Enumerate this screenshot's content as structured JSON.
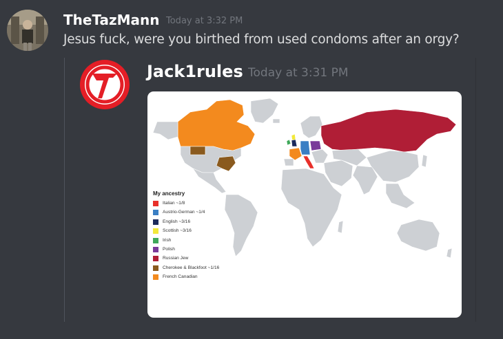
{
  "message": {
    "author": "TheTazMann",
    "timestamp": "Today at 3:32 PM",
    "content": "Jesus fuck, were you birthed from used condoms after an orgy?"
  },
  "quoted": {
    "author": "Jack1rules",
    "timestamp": "Today at 3:31 PM",
    "avatar_icon": "red-circle-v-logo-icon"
  },
  "map": {
    "legend_title": "My ancestry",
    "legend": [
      {
        "label": "Italian ~1/8",
        "color": "#e8302a"
      },
      {
        "label": "Austrio-German ~1/4",
        "color": "#3a7fc4"
      },
      {
        "label": "English ~3/16",
        "color": "#1b2a5c"
      },
      {
        "label": "Scottish ~3/16",
        "color": "#f2e93a"
      },
      {
        "label": "Irish",
        "color": "#3fa85a"
      },
      {
        "label": "Polish",
        "color": "#7a3a9a"
      },
      {
        "label": "Russian Jew",
        "color": "#b01e36"
      },
      {
        "label": "Cherokee & Blackfoot ~1/16",
        "color": "#8a5a1e"
      },
      {
        "label": "French Canadian",
        "color": "#f38a1e"
      }
    ],
    "land_color": "#cdd0d4",
    "border_color": "#ffffff"
  },
  "colors": {
    "background": "#36393f",
    "author": "#ffffff",
    "timestamp": "#72767d",
    "text": "#dcddde"
  }
}
